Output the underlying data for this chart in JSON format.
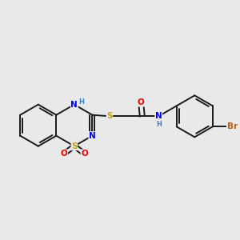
{
  "bg_color": "#e9e9e9",
  "bond_color": "#1a1a1a",
  "bond_width": 1.4,
  "atom_colors": {
    "S": "#c8a000",
    "N": "#0000ee",
    "O": "#ee0000",
    "Br": "#b86010",
    "H_label": "#4080c0"
  },
  "font_size": 7.5
}
